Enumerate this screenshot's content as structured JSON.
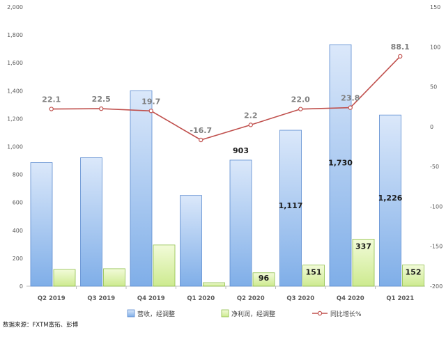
{
  "chart_data": {
    "type": "bar",
    "categories": [
      "Q2 2019",
      "Q3 2019",
      "Q4 2019",
      "Q1 2020",
      "Q2 2020",
      "Q3 2020",
      "Q4 2020",
      "Q1 2021"
    ],
    "series": [
      {
        "name": "营收，经调整",
        "type": "bar",
        "axis": "left",
        "values": [
          885,
          920,
          1400,
          650,
          903,
          1117,
          1730,
          1226
        ],
        "labels": [
          "",
          "",
          "",
          "",
          "903",
          "1,117",
          "1,730",
          "1,226"
        ],
        "color_top": "#dbe8fa",
        "color_bottom": "#7faee8",
        "stroke": "#5b8bd0"
      },
      {
        "name": "净利润，经调整",
        "type": "bar",
        "axis": "left",
        "values": [
          120,
          125,
          295,
          25,
          96,
          151,
          337,
          152
        ],
        "labels": [
          "",
          "",
          "",
          "",
          "96",
          "151",
          "337",
          "152"
        ],
        "color_top": "#f2fbd9",
        "color_bottom": "#cdea8f",
        "stroke": "#8fbf4a"
      },
      {
        "name": "同比增长%",
        "type": "line",
        "axis": "right",
        "values": [
          22.1,
          22.5,
          19.7,
          -16.7,
          2.2,
          22.0,
          23.8,
          88.1
        ],
        "labels": [
          "22.1",
          "22.5",
          "19.7",
          "-16.7",
          "2.2",
          "22.0",
          "23.8",
          "88.1"
        ],
        "color": "#c0504d"
      }
    ],
    "y_left": {
      "min": 0,
      "max": 2000,
      "ticks": [
        "0",
        "200",
        "400",
        "600",
        "800",
        "1,000",
        "1,200",
        "1,400",
        "1,600",
        "1,800",
        "2,000"
      ]
    },
    "y_right": {
      "min": -200,
      "max": 150,
      "ticks": [
        "-200",
        "-150",
        "-100",
        "-50",
        "0",
        "50",
        "100",
        "150"
      ]
    },
    "grid": false,
    "legend_position": "bottom"
  },
  "source": "数据来源：FXTM富拓、彭博"
}
